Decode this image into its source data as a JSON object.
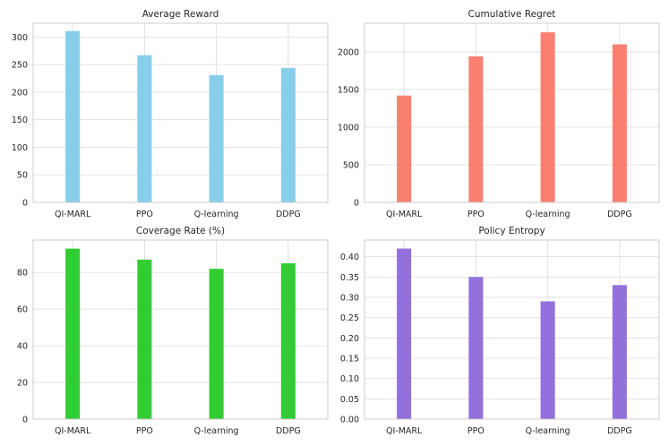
{
  "chart_data": [
    {
      "type": "bar",
      "title": "Average Reward",
      "categories": [
        "QI-MARL",
        "PPO",
        "Q-learning",
        "DDPG"
      ],
      "values": [
        311,
        267,
        231,
        244
      ],
      "color": "#87ceeb",
      "ylim": [
        0,
        325
      ],
      "yticks": [
        0,
        50,
        100,
        150,
        200,
        250,
        300
      ],
      "ytick_labels": [
        "0",
        "50",
        "100",
        "150",
        "200",
        "250",
        "300"
      ],
      "xlabel": "",
      "ylabel": "",
      "grid": true
    },
    {
      "type": "bar",
      "title": "Cumulative Regret",
      "categories": [
        "QI-MARL",
        "PPO",
        "Q-learning",
        "DDPG"
      ],
      "values": [
        1420,
        1940,
        2260,
        2100
      ],
      "color": "#fa8072",
      "ylim": [
        0,
        2380
      ],
      "yticks": [
        0,
        500,
        1000,
        1500,
        2000
      ],
      "ytick_labels": [
        "0",
        "500",
        "1000",
        "1500",
        "2000"
      ],
      "xlabel": "",
      "ylabel": "",
      "grid": true
    },
    {
      "type": "bar",
      "title": "Coverage Rate (%)",
      "categories": [
        "QI-MARL",
        "PPO",
        "Q-learning",
        "DDPG"
      ],
      "values": [
        93,
        87,
        82,
        85
      ],
      "color": "#32cd32",
      "ylim": [
        0,
        97.7
      ],
      "yticks": [
        0,
        20,
        40,
        60,
        80
      ],
      "ytick_labels": [
        "0",
        "20",
        "40",
        "60",
        "80"
      ],
      "xlabel": "",
      "ylabel": "",
      "grid": true
    },
    {
      "type": "bar",
      "title": "Policy Entropy",
      "categories": [
        "QI-MARL",
        "PPO",
        "Q-learning",
        "DDPG"
      ],
      "values": [
        0.42,
        0.35,
        0.29,
        0.33
      ],
      "color": "#9370db",
      "ylim": [
        0,
        0.441
      ],
      "yticks": [
        0,
        0.05,
        0.1,
        0.15,
        0.2,
        0.25,
        0.3,
        0.35,
        0.4
      ],
      "ytick_labels": [
        "0.00",
        "0.05",
        "0.10",
        "0.15",
        "0.20",
        "0.25",
        "0.30",
        "0.35",
        "0.40"
      ],
      "xlabel": "",
      "ylabel": "",
      "grid": true
    }
  ]
}
